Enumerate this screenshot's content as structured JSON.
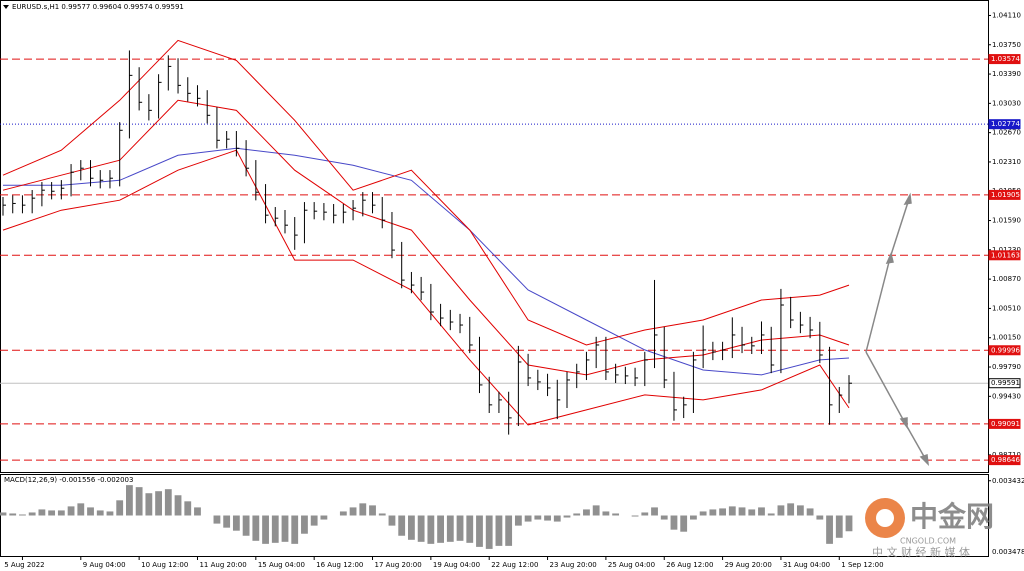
{
  "chart_data": {
    "type": "candlestick",
    "title": "EURUSD.s,H1  0.99577 0.99604 0.99574 0.99591",
    "categories": [
      null,
      null,
      "5 Aug 2022",
      null,
      null,
      null,
      null,
      null,
      "9 Aug 04:00",
      null,
      null,
      null,
      null,
      null,
      "10 Aug 12:00",
      null,
      null,
      null,
      null,
      null,
      "11 Aug 20:00",
      null,
      null,
      null,
      null,
      null,
      "15 Aug 04:00",
      null,
      null,
      null,
      null,
      null,
      "16 Aug 12:00",
      null,
      null,
      null,
      null,
      null,
      "17 Aug 20:00",
      null,
      null,
      null,
      null,
      null,
      "19 Aug 04:00",
      null,
      null,
      null,
      null,
      null,
      "22 Aug 12:00",
      null,
      null,
      null,
      null,
      null,
      "23 Aug 20:00",
      null,
      null,
      null,
      null,
      null,
      "25 Aug 04:00",
      null,
      null,
      null,
      null,
      null,
      "26 Aug 12:00",
      null,
      null,
      null,
      null,
      null,
      "29 Aug 20:00",
      null,
      null,
      null,
      null,
      null,
      "31 Aug 04:00",
      null,
      null,
      null,
      null,
      null,
      "1 Sep 12:00",
      null
    ],
    "high": [
      1.01879,
      1.019,
      1.019,
      1.01965,
      1.02063,
      1.02063,
      1.02087,
      1.02284,
      1.02333,
      1.02333,
      1.0221,
      1.0221,
      1.02799,
      1.0368,
      1.03474,
      1.03143,
      1.03388,
      1.0362,
      1.03584,
      1.03351,
      1.03253,
      1.03192,
      1.02983,
      1.0269,
      1.0269,
      1.02578,
      1.02333,
      1.02038,
      1.01756,
      1.01719,
      1.01633,
      1.01817,
      1.01817,
      1.01805,
      1.01793,
      1.01793,
      1.01842,
      1.0194,
      1.0194,
      1.01879,
      1.01695,
      1.01327,
      1.00958,
      1.00897,
      1.00811,
      1.00566,
      1.00492,
      1.00443,
      1.00406,
      1.00161,
      0.9967,
      0.99486,
      0.99486,
      1.0005,
      0.99952,
      0.99756,
      0.99707,
      0.99633,
      0.99731,
      0.9983,
      0.99977,
      1.00161,
      1.00161,
      0.9983,
      0.99793,
      0.99781,
      0.99977,
      1.0086,
      1.00284,
      0.99731,
      0.99425,
      0.99977,
      1.003,
      1.001,
      1.001,
      1.004,
      1.00284,
      1.00161,
      1.0035,
      1.00284,
      1.0075,
      1.00652,
      1.00468,
      1.00406,
      1.00345,
      1.00038,
      0.99545,
      0.99691
    ],
    "low": [
      1.0165,
      1.01679,
      1.01679,
      1.01679,
      1.01765,
      1.0185,
      1.0185,
      1.01887,
      1.02084,
      1.0201,
      1.01985,
      1.01985,
      1.0201,
      1.02599,
      1.02943,
      1.0282,
      1.02844,
      1.03188,
      1.03151,
      1.03053,
      1.02992,
      1.02783,
      1.02476,
      1.02476,
      1.02378,
      1.02133,
      1.01838,
      1.01556,
      1.01519,
      1.01433,
      1.0123,
      1.01311,
      1.01605,
      1.01593,
      1.01556,
      1.01556,
      1.01593,
      1.01642,
      1.01679,
      1.01495,
      1.01127,
      1.00758,
      1.00697,
      1.00611,
      1.00366,
      1.00292,
      1.00243,
      1.00206,
      0.99961,
      0.9947,
      0.99225,
      0.99225,
      0.9896,
      0.99065,
      0.99556,
      0.99507,
      0.99433,
      0.9915,
      0.99286,
      0.99531,
      0.9963,
      0.99777,
      0.9963,
      0.99593,
      0.99581,
      0.99556,
      0.99556,
      0.99777,
      0.99531,
      0.9913,
      0.99163,
      0.99225,
      0.99777,
      0.99875,
      0.99875,
      0.999,
      0.99961,
      0.9995,
      0.9995,
      0.99715,
      0.99715,
      1.00268,
      1.00206,
      1.00145,
      0.99838,
      0.9908,
      0.99225,
      0.99345
    ],
    "close": [
      1.01779,
      1.018,
      1.01779,
      1.01865,
      1.01963,
      1.0195,
      1.01987,
      1.02184,
      1.02233,
      1.0211,
      1.02085,
      1.0211,
      1.02699,
      1.03374,
      1.03043,
      1.02944,
      1.03288,
      1.03484,
      1.03251,
      1.03153,
      1.03092,
      1.02883,
      1.02576,
      1.0259,
      1.02478,
      1.02233,
      1.01938,
      1.01656,
      1.01619,
      1.01533,
      1.01411,
      1.01717,
      1.01705,
      1.01693,
      1.01656,
      1.01693,
      1.01742,
      1.0184,
      1.01779,
      1.01595,
      1.01227,
      1.00858,
      1.00797,
      1.00711,
      1.00466,
      1.00392,
      1.00343,
      1.00306,
      1.00061,
      0.9957,
      0.99325,
      0.99386,
      0.99165,
      0.99852,
      0.99656,
      0.99607,
      0.99533,
      0.99386,
      0.99631,
      0.9973,
      0.99877,
      1.00061,
      0.9973,
      0.99693,
      0.99681,
      0.99656,
      0.99877,
      1.00184,
      0.99631,
      0.99263,
      0.99325,
      0.99877,
      1.0,
      0.99975,
      1.0,
      1.00184,
      1.00061,
      1.0005,
      1.00184,
      0.99815,
      1.00552,
      1.00368,
      1.00306,
      1.00245,
      0.99938,
      0.99325,
      0.99445,
      0.99591
    ],
    "bar_color": "#000000",
    "ylim": [
      0.985,
      1.043
    ],
    "yticks": [
      {
        "value": 0.9871,
        "label": "0.98710"
      },
      {
        "value": 0.9907,
        "label": "0.99070"
      },
      {
        "value": 0.9943,
        "label": "0.99430"
      },
      {
        "value": 0.9979,
        "label": "0.99790"
      },
      {
        "value": 1.0015,
        "label": "1.00150"
      },
      {
        "value": 1.0051,
        "label": "1.00510"
      },
      {
        "value": 1.0087,
        "label": "1.00870"
      },
      {
        "value": 1.0123,
        "label": "1.01230"
      },
      {
        "value": 1.0159,
        "label": "1.01590"
      },
      {
        "value": 1.0195,
        "label": "1.01950"
      },
      {
        "value": 1.0231,
        "label": "1.02310"
      },
      {
        "value": 1.0267,
        "label": "1.02670"
      },
      {
        "value": 1.0303,
        "label": "1.03030"
      },
      {
        "value": 1.0339,
        "label": "1.03390"
      },
      {
        "value": 1.0375,
        "label": "1.03750"
      },
      {
        "value": 1.0411,
        "label": "1.04110"
      }
    ],
    "levels": [
      1.03574,
      1.01905,
      1.01163,
      0.99996,
      0.99091,
      0.98646
    ],
    "level_color": "#e01010",
    "blue_level": 1.02774,
    "blue_color": "#1818c8",
    "price": 0.99591,
    "indicators": {
      "x": [
        0,
        6,
        12,
        18,
        24,
        30,
        36,
        42,
        48,
        54,
        60,
        66,
        72,
        78,
        84,
        87
      ],
      "upper": [
        1.02147,
        1.02454,
        1.03067,
        1.03803,
        1.03558,
        1.02822,
        1.01963,
        1.02208,
        1.01472,
        1.00368,
        1.00061,
        1.00245,
        1.00368,
        1.00613,
        1.00674,
        1.00797
      ],
      "middle": [
        1.01963,
        1.02147,
        1.02331,
        1.03067,
        1.02944,
        1.02208,
        1.01717,
        1.01472,
        1.00613,
        0.99815,
        0.99693,
        0.99877,
        0.99938,
        1.00122,
        1.00184,
        1.00061
      ],
      "lower": [
        1.01472,
        1.01717,
        1.0184,
        1.02208,
        1.02454,
        1.01104,
        1.01104,
        1.00736,
        0.99877,
        0.99079,
        0.99263,
        0.99447,
        0.99386,
        0.99509,
        0.99815,
        0.99288
      ],
      "band_color": "#e00000",
      "ma": [
        1.02024,
        1.02024,
        1.02085,
        1.02392,
        1.02478,
        1.02392,
        1.02269,
        1.02085,
        1.01472,
        1.00736,
        1.00368,
        1.0,
        0.99754,
        0.99693,
        0.99877,
        0.99901
      ],
      "ma_color": "#4848c8"
    },
    "macd": {
      "label": "MACD(12,26,9) -0.001556 -0.002003",
      "values": [
        0.0003,
        0.0002,
        0.0001,
        0.0003,
        0.0006,
        0.0005,
        0.0005,
        0.0009,
        0.0012,
        0.0008,
        0.0005,
        0.0004,
        0.0015,
        0.003,
        0.0028,
        0.0022,
        0.0024,
        0.0026,
        0.002,
        0.0014,
        0.0008,
        0.0,
        -0.0008,
        -0.0012,
        -0.0015,
        -0.002,
        -0.0025,
        -0.0028,
        -0.0027,
        -0.0026,
        -0.0028,
        -0.0018,
        -0.001,
        -0.0004,
        0.0,
        0.0004,
        0.0008,
        0.0012,
        0.001,
        0.0002,
        -0.001,
        -0.002,
        -0.0024,
        -0.0026,
        -0.0028,
        -0.0027,
        -0.0026,
        -0.0025,
        -0.0027,
        -0.0031,
        -0.0033,
        -0.003,
        -0.003,
        -0.001,
        -0.0006,
        -0.0004,
        -0.0005,
        -0.0006,
        -0.0002,
        0.0002,
        0.0006,
        0.001,
        0.0004,
        0.0002,
        0.0,
        -0.0001,
        0.0003,
        0.0008,
        -0.0004,
        -0.0014,
        -0.0016,
        -0.0004,
        0.0004,
        0.0006,
        0.0007,
        0.0009,
        0.0008,
        0.0006,
        0.0008,
        0.0002,
        0.001,
        0.0012,
        0.001,
        0.0007,
        -0.0004,
        -0.0028,
        -0.0022,
        -0.001556
      ],
      "color": "#909090",
      "ylim": [
        -0.004,
        0.004
      ],
      "yticks": [
        0.003432
      ],
      "bottom_label": "0.003478"
    }
  },
  "watermark": {
    "brand": "中金网",
    "site": "CNGOLD.COM",
    "slogan": "中 文 财 经 新 媒 体"
  }
}
